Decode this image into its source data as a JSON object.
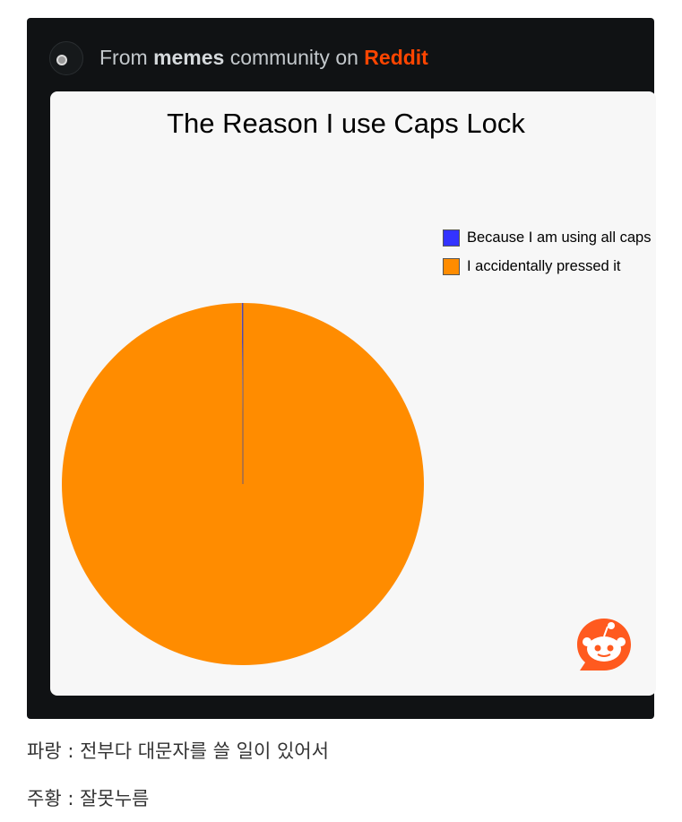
{
  "header": {
    "prefix": "From",
    "community": "memes",
    "middle": "community on",
    "brand": "Reddit",
    "brand_color": "#ff4500"
  },
  "chart_data": {
    "type": "pie",
    "title": "The Reason I use Caps Lock",
    "legend_position": "top-right",
    "series": [
      {
        "name": "Because I am using all caps",
        "value": 0.1,
        "color": "#3333ff"
      },
      {
        "name": "I accidentally pressed it",
        "value": 99.9,
        "color": "#ff8c00"
      }
    ]
  },
  "captions": [
    "파랑 : 전부다 대문자를 쓸 일이 있어서",
    "주황 : 잘못누름"
  ],
  "icons": {
    "avatar": "community-avatar-icon",
    "logo": "reddit-snoo-icon"
  }
}
